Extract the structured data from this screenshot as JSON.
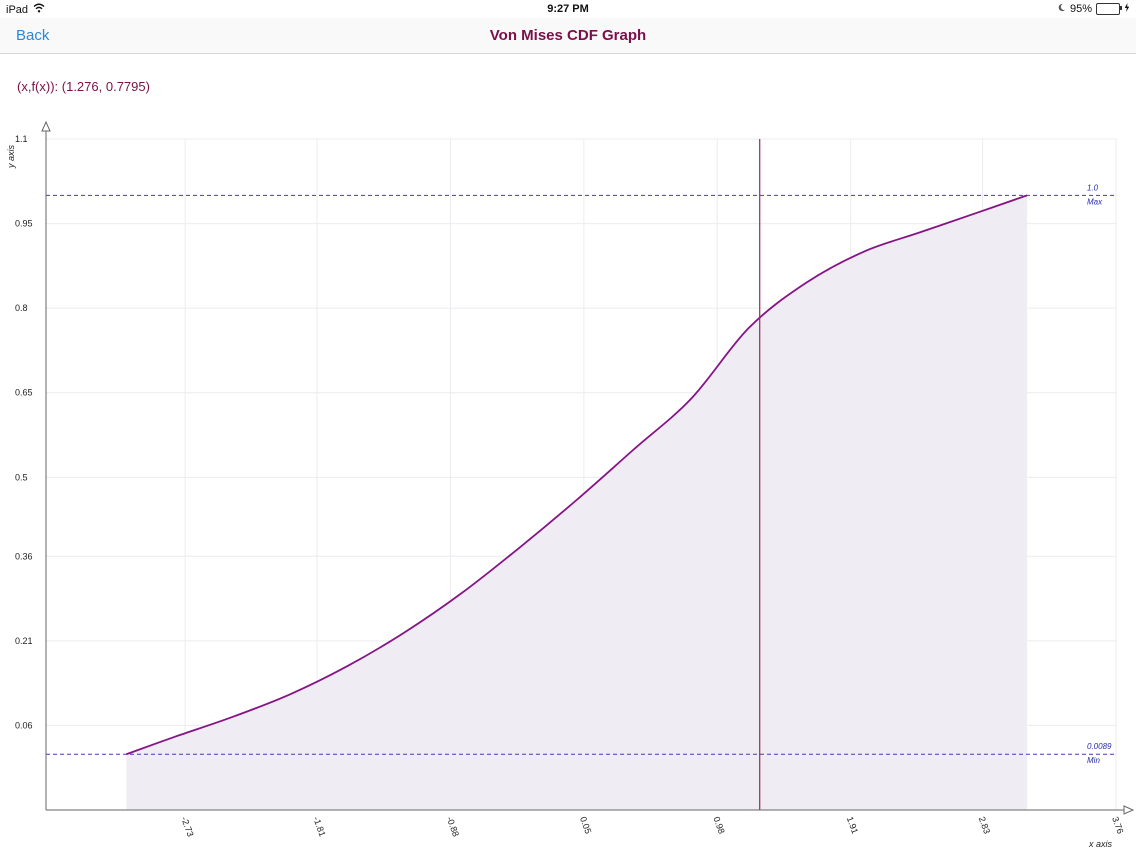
{
  "status_bar": {
    "device": "iPad",
    "time": "9:27 PM",
    "battery": "95%",
    "battery_level": 0.95,
    "icons": [
      "wifi-icon",
      "moon-icon",
      "battery-icon",
      "charging-bolt-icon"
    ]
  },
  "nav": {
    "back_label": "Back",
    "title": "Von Mises CDF Graph"
  },
  "readout": "(x,f(x)): (1.276, 0.7795)",
  "colors": {
    "curve": "#861486",
    "fill": "#efecf3",
    "ref_line": "#4b39b0",
    "cursor": "#9b2760",
    "grid": "#ececf0",
    "axis": "#666666"
  },
  "chart_data": {
    "type": "area",
    "xlabel": "x axis",
    "ylabel": "y axis",
    "xlim": [
      -3.7,
      3.76
    ],
    "ylim": [
      -0.09,
      1.1
    ],
    "x_ticks": [
      -2.73,
      -1.81,
      -0.88,
      0.05,
      0.98,
      1.91,
      2.83,
      3.76
    ],
    "x_tick_labels": [
      "-2.73",
      "-1.81",
      "-0.88",
      "0.05",
      "0.98",
      "1.91",
      "2.83",
      "3.76"
    ],
    "y_ticks": [
      0.06,
      0.21,
      0.36,
      0.5,
      0.65,
      0.8,
      0.95,
      1.1
    ],
    "y_tick_labels": [
      "0.06",
      "0.21",
      "0.36",
      "0.5",
      "0.65",
      "0.8",
      "0.95",
      "1.1"
    ],
    "grid": true,
    "series": [
      {
        "x": [
          -3.14,
          -2.8,
          -2.4,
          -2.0,
          -1.6,
          -1.2,
          -0.8,
          -0.4,
          0.0,
          0.4,
          0.8,
          1.2,
          1.6,
          2.0,
          2.4,
          2.8,
          3.14
        ],
        "y": [
          0.0089,
          0.04,
          0.075,
          0.115,
          0.165,
          0.225,
          0.295,
          0.375,
          0.46,
          0.55,
          0.64,
          0.765,
          0.845,
          0.9,
          0.935,
          0.97,
          1.0
        ]
      }
    ],
    "reference_lines": [
      {
        "value": 1.0,
        "value_label": "1.0",
        "label": "Max"
      },
      {
        "value": 0.0089,
        "value_label": "0.0089",
        "label": "Min"
      }
    ],
    "cursor": {
      "x": 1.276,
      "y": 0.7795
    }
  }
}
